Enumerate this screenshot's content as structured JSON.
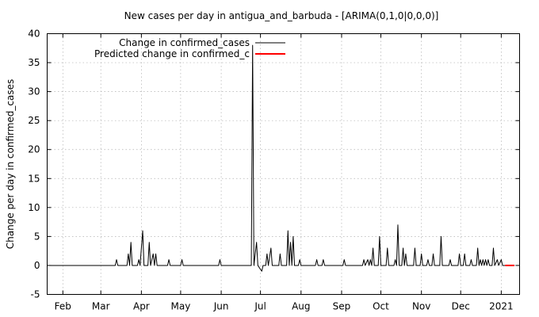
{
  "chart_data": {
    "type": "line",
    "title": "New cases per day in antigua_and_barbuda -  [ARIMA(0,1,0|0,0,0)]",
    "xlabel": "",
    "ylabel": "Change per day in confirmed_cases",
    "ylim": [
      -5,
      40
    ],
    "xlim": [
      "2020-01-20",
      "2021-01-15"
    ],
    "yticks": [
      -5,
      0,
      5,
      10,
      15,
      20,
      25,
      30,
      35,
      40
    ],
    "xticks": [
      {
        "label": "Feb",
        "date": "2020-02-01"
      },
      {
        "label": "Mar",
        "date": "2020-03-01"
      },
      {
        "label": "Apr",
        "date": "2020-04-01"
      },
      {
        "label": "May",
        "date": "2020-05-01"
      },
      {
        "label": "Jun",
        "date": "2020-06-01"
      },
      {
        "label": "Jul",
        "date": "2020-07-01"
      },
      {
        "label": "Aug",
        "date": "2020-08-01"
      },
      {
        "label": "Sep",
        "date": "2020-09-01"
      },
      {
        "label": "Oct",
        "date": "2020-10-01"
      },
      {
        "label": "Nov",
        "date": "2020-11-01"
      },
      {
        "label": "Dec",
        "date": "2020-12-01"
      },
      {
        "label": "2021",
        "date": "2021-01-01"
      }
    ],
    "grid": true,
    "legend_position": "top-left",
    "series": [
      {
        "name": "Change in confirmed_cases",
        "color": "#000000",
        "points": [
          [
            "2020-01-22",
            0
          ],
          [
            "2020-03-12",
            0
          ],
          [
            "2020-03-13",
            1
          ],
          [
            "2020-03-14",
            0
          ],
          [
            "2020-03-21",
            0
          ],
          [
            "2020-03-22",
            2
          ],
          [
            "2020-03-23",
            0
          ],
          [
            "2020-03-24",
            4
          ],
          [
            "2020-03-25",
            0
          ],
          [
            "2020-03-29",
            0
          ],
          [
            "2020-03-30",
            1
          ],
          [
            "2020-03-31",
            0
          ],
          [
            "2020-04-02",
            6
          ],
          [
            "2020-04-03",
            0
          ],
          [
            "2020-04-06",
            0
          ],
          [
            "2020-04-07",
            4
          ],
          [
            "2020-04-08",
            0
          ],
          [
            "2020-04-10",
            2
          ],
          [
            "2020-04-11",
            0
          ],
          [
            "2020-04-12",
            2
          ],
          [
            "2020-04-13",
            0
          ],
          [
            "2020-04-21",
            0
          ],
          [
            "2020-04-22",
            1
          ],
          [
            "2020-04-23",
            0
          ],
          [
            "2020-05-01",
            0
          ],
          [
            "2020-05-02",
            1
          ],
          [
            "2020-05-03",
            0
          ],
          [
            "2020-05-30",
            0
          ],
          [
            "2020-05-31",
            1
          ],
          [
            "2020-06-01",
            0
          ],
          [
            "2020-06-24",
            0
          ],
          [
            "2020-06-25",
            38
          ],
          [
            "2020-06-26",
            0
          ],
          [
            "2020-06-28",
            4
          ],
          [
            "2020-06-29",
            0
          ],
          [
            "2020-07-02",
            -1
          ],
          [
            "2020-07-03",
            0
          ],
          [
            "2020-07-05",
            0
          ],
          [
            "2020-07-06",
            2
          ],
          [
            "2020-07-07",
            0
          ],
          [
            "2020-07-09",
            3
          ],
          [
            "2020-07-10",
            0
          ],
          [
            "2020-07-15",
            0
          ],
          [
            "2020-07-16",
            2
          ],
          [
            "2020-07-17",
            0
          ],
          [
            "2020-07-21",
            0
          ],
          [
            "2020-07-22",
            6
          ],
          [
            "2020-07-23",
            0
          ],
          [
            "2020-07-24",
            4
          ],
          [
            "2020-07-25",
            0
          ],
          [
            "2020-07-26",
            5
          ],
          [
            "2020-07-27",
            0
          ],
          [
            "2020-07-30",
            0
          ],
          [
            "2020-07-31",
            1
          ],
          [
            "2020-08-01",
            0
          ],
          [
            "2020-08-12",
            0
          ],
          [
            "2020-08-13",
            1
          ],
          [
            "2020-08-14",
            0
          ],
          [
            "2020-08-17",
            0
          ],
          [
            "2020-08-18",
            1
          ],
          [
            "2020-08-19",
            0
          ],
          [
            "2020-09-02",
            0
          ],
          [
            "2020-09-03",
            1
          ],
          [
            "2020-09-04",
            0
          ],
          [
            "2020-09-17",
            0
          ],
          [
            "2020-09-18",
            1
          ],
          [
            "2020-09-19",
            0
          ],
          [
            "2020-09-21",
            1
          ],
          [
            "2020-09-22",
            0
          ],
          [
            "2020-09-23",
            1
          ],
          [
            "2020-09-24",
            0
          ],
          [
            "2020-09-25",
            3
          ],
          [
            "2020-09-26",
            0
          ],
          [
            "2020-09-29",
            0
          ],
          [
            "2020-09-30",
            5
          ],
          [
            "2020-10-01",
            0
          ],
          [
            "2020-10-05",
            0
          ],
          [
            "2020-10-06",
            3
          ],
          [
            "2020-10-07",
            0
          ],
          [
            "2020-10-11",
            0
          ],
          [
            "2020-10-12",
            1
          ],
          [
            "2020-10-13",
            0
          ],
          [
            "2020-10-14",
            7
          ],
          [
            "2020-10-15",
            0
          ],
          [
            "2020-10-17",
            0
          ],
          [
            "2020-10-18",
            3
          ],
          [
            "2020-10-19",
            0
          ],
          [
            "2020-10-20",
            2
          ],
          [
            "2020-10-21",
            0
          ],
          [
            "2020-10-26",
            0
          ],
          [
            "2020-10-27",
            3
          ],
          [
            "2020-10-28",
            0
          ],
          [
            "2020-10-31",
            0
          ],
          [
            "2020-11-01",
            2
          ],
          [
            "2020-11-02",
            0
          ],
          [
            "2020-11-05",
            0
          ],
          [
            "2020-11-06",
            1
          ],
          [
            "2020-11-07",
            0
          ],
          [
            "2020-11-09",
            0
          ],
          [
            "2020-11-10",
            2
          ],
          [
            "2020-11-11",
            0
          ],
          [
            "2020-11-15",
            0
          ],
          [
            "2020-11-16",
            5
          ],
          [
            "2020-11-17",
            0
          ],
          [
            "2020-11-22",
            0
          ],
          [
            "2020-11-23",
            1
          ],
          [
            "2020-11-24",
            0
          ],
          [
            "2020-11-29",
            0
          ],
          [
            "2020-11-30",
            2
          ],
          [
            "2020-12-01",
            0
          ],
          [
            "2020-12-03",
            0
          ],
          [
            "2020-12-04",
            2
          ],
          [
            "2020-12-05",
            0
          ],
          [
            "2020-12-08",
            0
          ],
          [
            "2020-12-09",
            1
          ],
          [
            "2020-12-10",
            0
          ],
          [
            "2020-12-13",
            0
          ],
          [
            "2020-12-14",
            3
          ],
          [
            "2020-12-15",
            0
          ],
          [
            "2020-12-16",
            1
          ],
          [
            "2020-12-17",
            0
          ],
          [
            "2020-12-18",
            1
          ],
          [
            "2020-12-19",
            0
          ],
          [
            "2020-12-20",
            1
          ],
          [
            "2020-12-21",
            0
          ],
          [
            "2020-12-22",
            1
          ],
          [
            "2020-12-23",
            0
          ],
          [
            "2020-12-25",
            0
          ],
          [
            "2020-12-26",
            3
          ],
          [
            "2020-12-27",
            0
          ],
          [
            "2020-12-29",
            1
          ],
          [
            "2020-12-30",
            0
          ],
          [
            "2021-01-01",
            1
          ],
          [
            "2021-01-02",
            0
          ],
          [
            "2021-01-04",
            0
          ]
        ]
      },
      {
        "name": "Predicted change in confirmed_c",
        "color": "#ff0000",
        "points": [
          [
            "2021-01-04",
            0
          ],
          [
            "2021-01-11",
            0
          ]
        ]
      }
    ]
  }
}
